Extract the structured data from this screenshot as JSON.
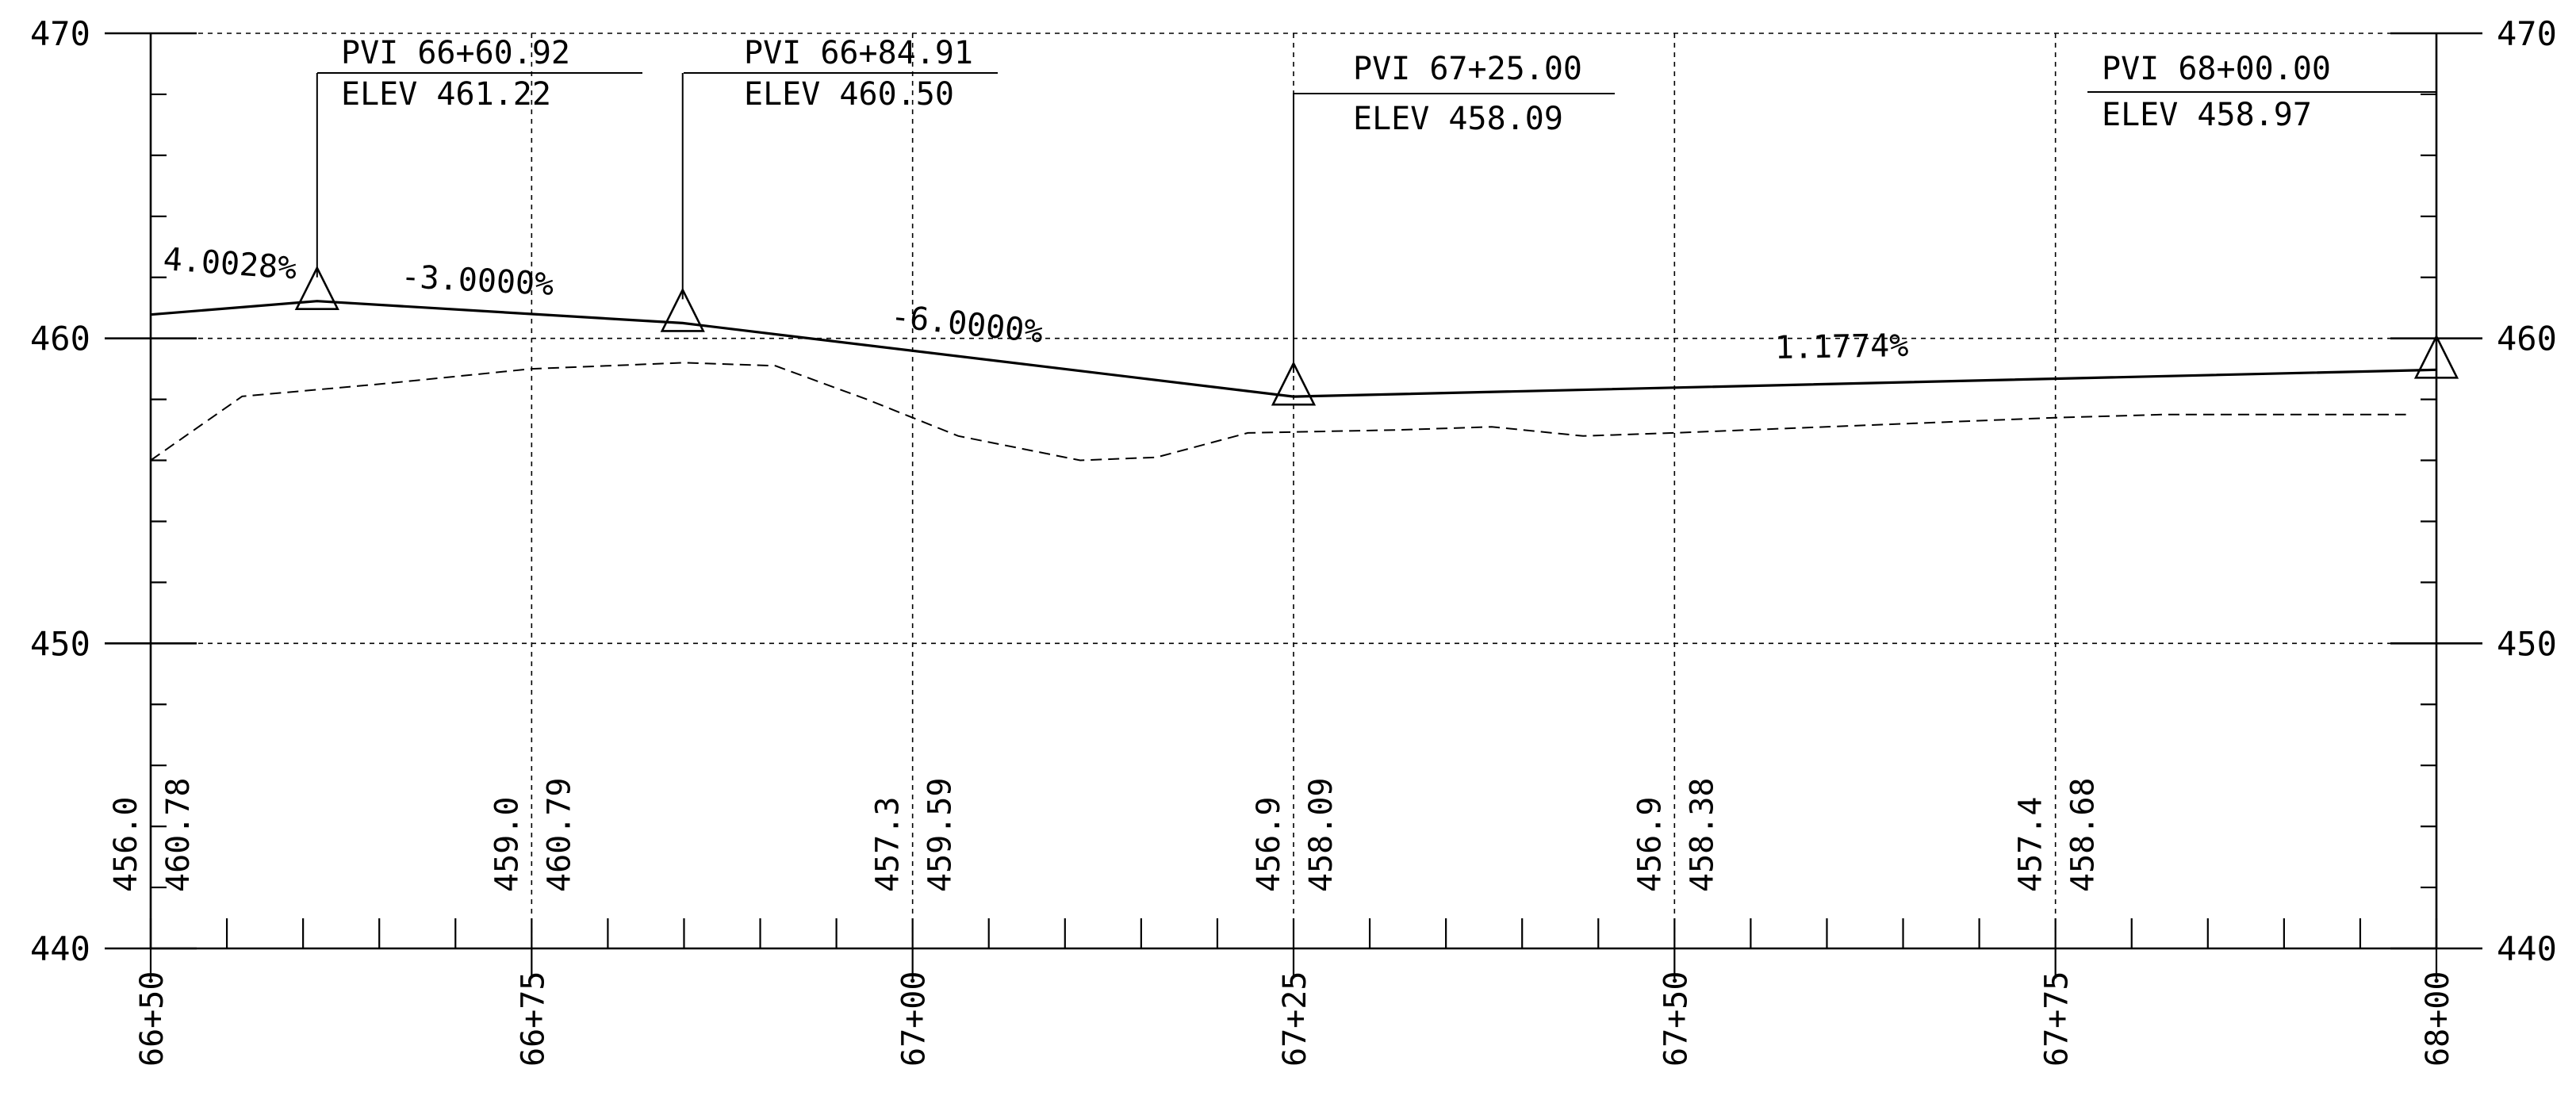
{
  "chart_data": {
    "type": "line",
    "title": "",
    "xlabel": "",
    "ylabel": "",
    "xlim": [
      6650,
      6800
    ],
    "ylim": [
      440,
      470
    ],
    "grid": true,
    "y_ticks": [
      {
        "value": 440,
        "label": "440"
      },
      {
        "value": 450,
        "label": "450"
      },
      {
        "value": 460,
        "label": "460"
      },
      {
        "value": 470,
        "label": "470"
      }
    ],
    "x_ticks": [
      {
        "value": 6650,
        "label": "66+50"
      },
      {
        "value": 6675,
        "label": "66+75"
      },
      {
        "value": 6700,
        "label": "67+00"
      },
      {
        "value": 6725,
        "label": "67+25"
      },
      {
        "value": 6750,
        "label": "67+50"
      },
      {
        "value": 6775,
        "label": "67+75"
      },
      {
        "value": 6800,
        "label": "68+00"
      }
    ],
    "series": [
      {
        "style": "dashed",
        "x": [
          6650,
          6656,
          6665,
          6675,
          6685,
          6691,
          6697,
          6703,
          6711,
          6716,
          6722,
          6732,
          6738,
          6744,
          6750,
          6775,
          6782,
          6798
        ],
        "y": [
          456.0,
          458.1,
          458.5,
          459.0,
          459.2,
          459.1,
          458.0,
          456.8,
          456.0,
          456.1,
          456.9,
          457.0,
          457.1,
          456.8,
          456.9,
          457.4,
          457.5,
          457.5
        ]
      },
      {
        "style": "solid",
        "x": [
          6650,
          6660.92,
          6684.91,
          6725.0,
          6800.0
        ],
        "y": [
          460.78,
          461.22,
          460.5,
          458.09,
          458.97
        ]
      }
    ],
    "pvis": [
      {
        "station": 6660.92,
        "elev": 461.22,
        "station_label": "PVI 66+60.92",
        "elev_label": "ELEV 461.22"
      },
      {
        "station": 6684.91,
        "elev": 460.5,
        "station_label": "PVI 66+84.91",
        "elev_label": "ELEV 460.50"
      },
      {
        "station": 6725.0,
        "elev": 458.09,
        "station_label": "PVI 67+25.00",
        "elev_label": "ELEV 458.09"
      },
      {
        "station": 6800.0,
        "elev": 458.97,
        "station_label": "PVI 68+00.00",
        "elev_label": "ELEV 458.97"
      }
    ],
    "grades": [
      {
        "text": "4.0028%"
      },
      {
        "text": "-3.0000%"
      },
      {
        "text": "-6.0000%"
      },
      {
        "text": "1.1774%"
      }
    ],
    "station_values": [
      {
        "station": 6650,
        "existing": "456.0",
        "proposed": "460.78"
      },
      {
        "station": 6675,
        "existing": "459.0",
        "proposed": "460.79"
      },
      {
        "station": 6700,
        "existing": "457.3",
        "proposed": "459.59"
      },
      {
        "station": 6725,
        "existing": "456.9",
        "proposed": "458.09"
      },
      {
        "station": 6750,
        "existing": "456.9",
        "proposed": "458.38"
      },
      {
        "station": 6775,
        "existing": "457.4",
        "proposed": "458.68"
      }
    ]
  }
}
